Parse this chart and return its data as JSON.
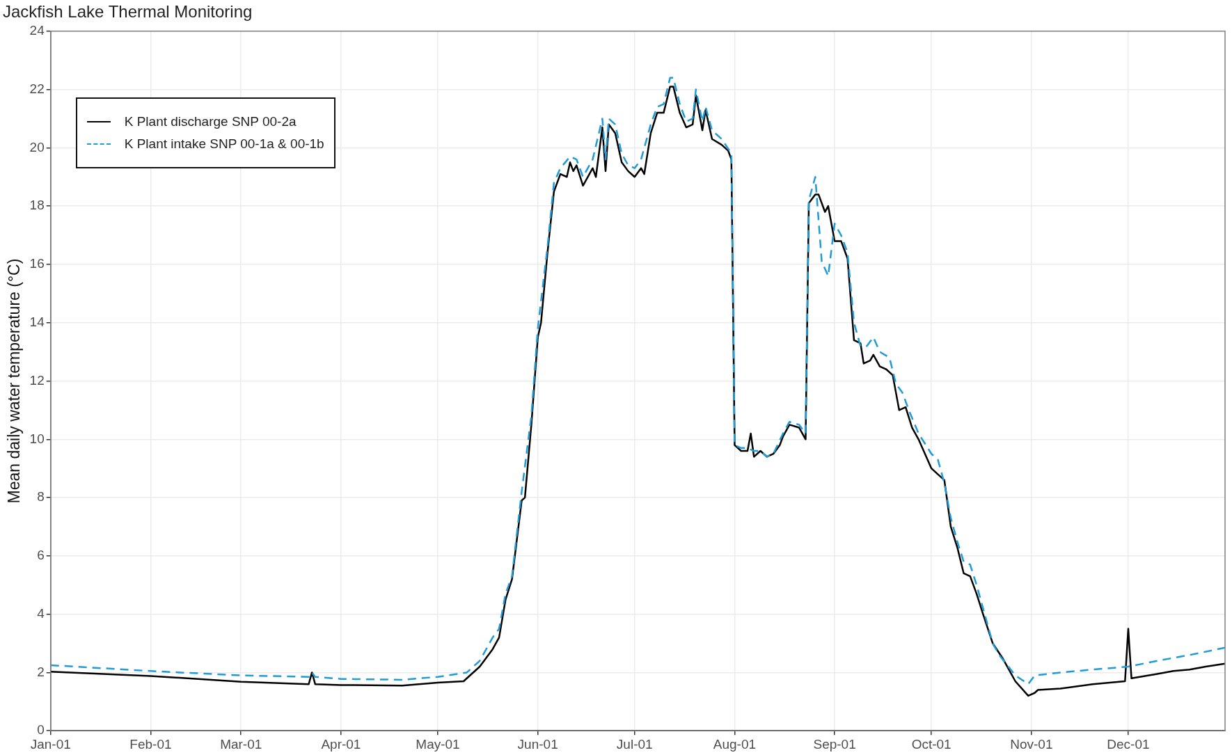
{
  "chart_data": {
    "type": "line",
    "title": "Jackfish Lake Thermal Monitoring",
    "ylabel": "Mean daily water temperature (°C)",
    "xlim": [
      "--01-01",
      "--12-31"
    ],
    "xticks": [
      {
        "value": "--01-01",
        "label": "Jan-01"
      },
      {
        "value": "--02-01",
        "label": "Feb-01"
      },
      {
        "value": "--03-01",
        "label": "Mar-01"
      },
      {
        "value": "--04-01",
        "label": "Apr-01"
      },
      {
        "value": "--05-01",
        "label": "May-01"
      },
      {
        "value": "--06-01",
        "label": "Jun-01"
      },
      {
        "value": "--07-01",
        "label": "Jul-01"
      },
      {
        "value": "--08-01",
        "label": "Aug-01"
      },
      {
        "value": "--09-01",
        "label": "Sep-01"
      },
      {
        "value": "--10-01",
        "label": "Oct-01"
      },
      {
        "value": "--11-01",
        "label": "Nov-01"
      },
      {
        "value": "--12-01",
        "label": "Dec-01"
      }
    ],
    "ylim": [
      0,
      24
    ],
    "yticks": [
      0,
      2,
      4,
      6,
      8,
      10,
      12,
      14,
      16,
      18,
      20,
      22,
      24
    ],
    "grid": true,
    "legend": "top left",
    "marker": "none",
    "series": [
      {
        "name": "K Plant discharge SNP 00-2a",
        "color": "#000000",
        "line_style": "solid",
        "x": [
          "--01-01",
          "--02-01",
          "--03-01",
          "--03-22",
          "--03-23",
          "--03-24",
          "--04-01",
          "--04-20",
          "--05-01",
          "--05-09",
          "--05-10",
          "--05-14",
          "--05-18",
          "--05-20",
          "--05-22",
          "--05-24",
          "--05-27",
          "--05-28",
          "--05-30",
          "--06-01",
          "--06-02",
          "--06-04",
          "--06-06",
          "--06-08",
          "--06-10",
          "--06-11",
          "--06-12",
          "--06-13",
          "--06-15",
          "--06-18",
          "--06-19",
          "--06-21",
          "--06-22",
          "--06-23",
          "--06-25",
          "--06-27",
          "--06-29",
          "--07-01",
          "--07-03",
          "--07-04",
          "--07-06",
          "--07-08",
          "--07-10",
          "--07-12",
          "--07-13",
          "--07-15",
          "--07-17",
          "--07-19",
          "--07-20",
          "--07-22",
          "--07-23",
          "--07-25",
          "--07-28",
          "--07-30",
          "--07-31",
          "--08-01",
          "--08-03",
          "--08-05",
          "--08-06",
          "--08-07",
          "--08-09",
          "--08-11",
          "--08-13",
          "--08-15",
          "--08-16",
          "--08-18",
          "--08-21",
          "--08-23",
          "--08-24",
          "--08-26",
          "--08-27",
          "--08-29",
          "--08-30",
          "--09-01",
          "--09-03",
          "--09-05",
          "--09-07",
          "--09-09",
          "--09-10",
          "--09-12",
          "--09-13",
          "--09-15",
          "--09-17",
          "--09-19",
          "--09-21",
          "--09-23",
          "--09-25",
          "--09-27",
          "--10-01",
          "--10-03",
          "--10-05",
          "--10-07",
          "--10-09",
          "--10-11",
          "--10-13",
          "--10-15",
          "--10-17",
          "--10-20",
          "--10-23",
          "--10-27",
          "--10-31",
          "--11-02",
          "--11-03",
          "--11-10",
          "--11-20",
          "--11-30",
          "--12-01",
          "--12-02",
          "--12-10",
          "--12-15",
          "--12-20",
          "--12-25",
          "--12-31"
        ],
        "values": [
          2.03,
          1.88,
          1.68,
          1.6,
          2.0,
          1.6,
          1.57,
          1.55,
          1.65,
          1.7,
          1.8,
          2.2,
          2.8,
          3.2,
          4.5,
          5.2,
          7.9,
          8.0,
          10.5,
          13.5,
          14,
          16.4,
          18.5,
          19.1,
          19.0,
          19.5,
          19.2,
          19.4,
          18.7,
          19.3,
          19.0,
          20.7,
          19.2,
          20.8,
          20.5,
          19.5,
          19.2,
          19.0,
          19.3,
          19.1,
          20.5,
          21.2,
          21.2,
          22.1,
          22.1,
          21.2,
          20.7,
          20.8,
          21.8,
          20.6,
          21.3,
          20.3,
          20.1,
          19.9,
          19.6,
          9.8,
          9.6,
          9.6,
          10.2,
          9.4,
          9.6,
          9.4,
          9.5,
          9.8,
          10.1,
          10.5,
          10.4,
          10.0,
          18.1,
          18.4,
          18.4,
          17.8,
          18.0,
          16.8,
          16.8,
          16.2,
          13.4,
          13.3,
          12.6,
          12.7,
          12.9,
          12.5,
          12.4,
          12.2,
          11.0,
          11.1,
          10.4,
          10.0,
          9.0,
          8.8,
          8.6,
          7.0,
          6.3,
          5.4,
          5.3,
          4.7,
          4.0,
          3.0,
          2.5,
          1.7,
          1.2,
          1.3,
          1.4,
          1.45,
          1.6,
          1.7,
          3.5,
          1.8,
          1.95,
          2.05,
          2.1,
          2.2,
          2.3
        ]
      },
      {
        "name": "K Plant intake SNP 00-1a & 00-1b",
        "color": "#1f9bd6",
        "line_style": "dashed",
        "x": [
          "--01-01",
          "--02-01",
          "--03-01",
          "--03-22",
          "--03-23",
          "--03-24",
          "--04-01",
          "--04-20",
          "--05-01",
          "--05-10",
          "--05-14",
          "--05-18",
          "--05-20",
          "--05-22",
          "--05-24",
          "--05-27",
          "--05-30",
          "--06-01",
          "--06-04",
          "--06-06",
          "--06-08",
          "--06-11",
          "--06-13",
          "--06-15",
          "--06-18",
          "--06-21",
          "--06-22",
          "--06-23",
          "--06-25",
          "--06-27",
          "--06-29",
          "--07-01",
          "--07-03",
          "--07-06",
          "--07-08",
          "--07-10",
          "--07-12",
          "--07-13",
          "--07-15",
          "--07-17",
          "--07-19",
          "--07-20",
          "--07-22",
          "--07-23",
          "--07-25",
          "--07-28",
          "--07-31",
          "--08-01",
          "--08-03",
          "--08-05",
          "--08-07",
          "--08-09",
          "--08-11",
          "--08-13",
          "--08-16",
          "--08-18",
          "--08-21",
          "--08-23",
          "--08-24",
          "--08-26",
          "--08-28",
          "--08-30",
          "--09-01",
          "--09-03",
          "--09-05",
          "--09-07",
          "--09-09",
          "--09-11",
          "--09-13",
          "--09-15",
          "--09-18",
          "--09-20",
          "--09-22",
          "--09-24",
          "--09-27",
          "--10-01",
          "--10-03",
          "--10-05",
          "--10-07",
          "--10-09",
          "--10-11",
          "--10-13",
          "--10-15",
          "--10-17",
          "--10-20",
          "--10-22",
          "--10-27",
          "--10-31",
          "--11-02",
          "--11-10",
          "--11-20",
          "--12-01",
          "--12-10",
          "--12-15",
          "--12-20",
          "--12-31"
        ],
        "values": [
          2.25,
          2.05,
          1.9,
          1.85,
          2.0,
          1.85,
          1.78,
          1.75,
          1.85,
          2.0,
          2.4,
          3.2,
          3.5,
          4.7,
          5.3,
          8.2,
          10.8,
          13.8,
          16.6,
          18.8,
          19.3,
          19.7,
          19.6,
          19.0,
          19.6,
          21.0,
          19.6,
          21.0,
          20.8,
          19.8,
          19.4,
          19.3,
          19.6,
          20.8,
          21.4,
          21.5,
          22.4,
          22.4,
          21.5,
          20.9,
          21.0,
          22.0,
          20.9,
          21.4,
          20.6,
          20.3,
          19.8,
          9.8,
          9.7,
          9.7,
          9.6,
          9.6,
          9.4,
          9.5,
          10.2,
          10.6,
          10.5,
          10.2,
          18.2,
          19.0,
          16.1,
          15.6,
          17.4,
          17.0,
          16.4,
          14.0,
          13.2,
          13.2,
          13.5,
          13.0,
          12.8,
          11.9,
          11.6,
          11.0,
          10.2,
          9.5,
          9.3,
          8.5,
          7.3,
          6.5,
          5.8,
          5.7,
          5.0,
          4.2,
          3.0,
          2.6,
          1.9,
          1.6,
          1.9,
          2.0,
          2.1,
          2.2,
          2.4,
          2.5,
          2.6,
          2.85
        ]
      }
    ]
  }
}
